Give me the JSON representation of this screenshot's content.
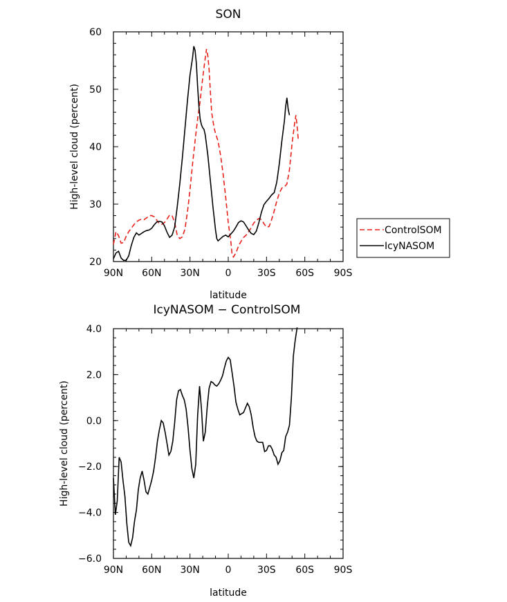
{
  "chart_data": [
    {
      "type": "line",
      "title": "SON",
      "xlabel": "latitude",
      "ylabel": "High-level cloud (percent)",
      "xlim": [
        90,
        -90
      ],
      "ylim": [
        20,
        60
      ],
      "x_ticks": [
        90,
        60,
        30,
        0,
        -30,
        -60,
        -90
      ],
      "x_tick_labels": [
        "90N",
        "60N",
        "30N",
        "0",
        "30S",
        "60S",
        "90S"
      ],
      "y_ticks": [
        20,
        30,
        40,
        50,
        60
      ],
      "y_tick_labels": [
        "20",
        "30",
        "40",
        "50",
        "60"
      ],
      "legend": "right",
      "series": [
        {
          "name": "ControlSOM",
          "color": "#e8201a",
          "dash": "dashed",
          "points": [
            [
              90,
              23.0
            ],
            [
              88,
              25.2
            ],
            [
              86,
              24.5
            ],
            [
              84,
              23.2
            ],
            [
              82,
              23.3
            ],
            [
              80,
              24.4
            ],
            [
              78,
              25.2
            ],
            [
              76,
              25.8
            ],
            [
              74,
              26.4
            ],
            [
              72,
              26.9
            ],
            [
              70,
              27.2
            ],
            [
              68,
              27.4
            ],
            [
              66,
              27.3
            ],
            [
              64,
              27.6
            ],
            [
              62,
              28.0
            ],
            [
              60,
              28.0
            ],
            [
              58,
              27.8
            ],
            [
              56,
              27.2
            ],
            [
              54,
              26.6
            ],
            [
              52,
              26.5
            ],
            [
              50,
              26.8
            ],
            [
              48,
              27.4
            ],
            [
              46,
              28.1
            ],
            [
              44,
              28.0
            ],
            [
              42,
              26.8
            ],
            [
              40,
              24.6
            ],
            [
              38,
              24.0
            ],
            [
              36,
              24.3
            ],
            [
              34,
              25.6
            ],
            [
              32,
              28.6
            ],
            [
              30,
              32.5
            ],
            [
              28,
              37.0
            ],
            [
              26,
              41.0
            ],
            [
              24,
              44.8
            ],
            [
              22,
              48.0
            ],
            [
              20,
              52.0
            ],
            [
              18,
              55.5
            ],
            [
              17,
              57.0
            ],
            [
              16,
              55.8
            ],
            [
              15,
              53.5
            ],
            [
              14,
              49.5
            ],
            [
              13,
              46.0
            ],
            [
              12,
              44.5
            ],
            [
              11,
              43.2
            ],
            [
              10,
              42.3
            ],
            [
              8,
              41.0
            ],
            [
              6,
              38.5
            ],
            [
              4,
              35.2
            ],
            [
              2,
              31.2
            ],
            [
              0,
              26.8
            ],
            [
              -2,
              23.5
            ],
            [
              -3,
              21.3
            ],
            [
              -4,
              20.8
            ],
            [
              -6,
              21.5
            ],
            [
              -8,
              22.7
            ],
            [
              -10,
              23.5
            ],
            [
              -12,
              24.2
            ],
            [
              -14,
              24.6
            ],
            [
              -16,
              25.2
            ],
            [
              -18,
              25.9
            ],
            [
              -20,
              26.7
            ],
            [
              -22,
              27.2
            ],
            [
              -24,
              27.5
            ],
            [
              -26,
              27.3
            ],
            [
              -28,
              26.6
            ],
            [
              -30,
              26.0
            ],
            [
              -32,
              26.1
            ],
            [
              -34,
              27.3
            ],
            [
              -36,
              28.8
            ],
            [
              -38,
              30.5
            ],
            [
              -40,
              31.9
            ],
            [
              -42,
              32.8
            ],
            [
              -44,
              33.0
            ],
            [
              -46,
              33.5
            ],
            [
              -48,
              36.0
            ],
            [
              -50,
              40.5
            ],
            [
              -52,
              44.0
            ],
            [
              -53,
              45.5
            ],
            [
              -54,
              43.5
            ],
            [
              -55,
              41.0
            ]
          ]
        },
        {
          "name": "IcyNASOM",
          "color": "#000000",
          "dash": "solid",
          "points": [
            [
              90,
              20.5
            ],
            [
              88,
              21.5
            ],
            [
              86,
              21.8
            ],
            [
              84,
              20.6
            ],
            [
              82,
              20.2
            ],
            [
              80,
              20.2
            ],
            [
              78,
              21.0
            ],
            [
              76,
              22.8
            ],
            [
              74,
              24.2
            ],
            [
              72,
              25.0
            ],
            [
              70,
              24.6
            ],
            [
              68,
              24.9
            ],
            [
              66,
              25.2
            ],
            [
              64,
              25.4
            ],
            [
              62,
              25.5
            ],
            [
              60,
              25.8
            ],
            [
              58,
              26.4
            ],
            [
              56,
              26.9
            ],
            [
              54,
              27.0
            ],
            [
              52,
              26.9
            ],
            [
              50,
              26.2
            ],
            [
              48,
              25.1
            ],
            [
              46,
              24.2
            ],
            [
              44,
              24.6
            ],
            [
              42,
              26.0
            ],
            [
              40,
              29.5
            ],
            [
              38,
              33.5
            ],
            [
              36,
              38.0
            ],
            [
              34,
              43.0
            ],
            [
              32,
              48.0
            ],
            [
              30,
              52.5
            ],
            [
              28,
              55.5
            ],
            [
              27,
              57.5
            ],
            [
              26,
              56.8
            ],
            [
              25,
              54.5
            ],
            [
              24,
              50.5
            ],
            [
              23,
              47.0
            ],
            [
              22,
              44.8
            ],
            [
              21,
              43.8
            ],
            [
              20,
              43.3
            ],
            [
              19,
              43.0
            ],
            [
              18,
              42.0
            ],
            [
              16,
              38.5
            ],
            [
              14,
              34.0
            ],
            [
              12,
              29.5
            ],
            [
              10,
              25.5
            ],
            [
              9,
              24.0
            ],
            [
              8,
              23.6
            ],
            [
              6,
              24.0
            ],
            [
              4,
              24.4
            ],
            [
              2,
              24.6
            ],
            [
              0,
              24.3
            ],
            [
              -2,
              24.8
            ],
            [
              -4,
              25.3
            ],
            [
              -6,
              26.0
            ],
            [
              -8,
              26.8
            ],
            [
              -10,
              27.1
            ],
            [
              -12,
              26.9
            ],
            [
              -14,
              26.2
            ],
            [
              -16,
              25.5
            ],
            [
              -18,
              24.9
            ],
            [
              -20,
              24.7
            ],
            [
              -22,
              25.3
            ],
            [
              -24,
              26.8
            ],
            [
              -26,
              28.6
            ],
            [
              -28,
              29.9
            ],
            [
              -30,
              30.5
            ],
            [
              -32,
              31.0
            ],
            [
              -34,
              31.6
            ],
            [
              -36,
              32.0
            ],
            [
              -38,
              33.8
            ],
            [
              -40,
              37.0
            ],
            [
              -42,
              41.0
            ],
            [
              -44,
              44.5
            ],
            [
              -45,
              47.0
            ],
            [
              -46,
              48.5
            ],
            [
              -47,
              46.5
            ],
            [
              -48,
              45.5
            ]
          ]
        }
      ]
    },
    {
      "type": "line",
      "title": "IcyNASOM − ControlSOM",
      "xlabel": "latitude",
      "ylabel": "High-level cloud (percent)",
      "xlim": [
        90,
        -90
      ],
      "ylim": [
        -6,
        4
      ],
      "x_ticks": [
        90,
        60,
        30,
        0,
        -30,
        -60,
        -90
      ],
      "x_tick_labels": [
        "90N",
        "60N",
        "30N",
        "0",
        "30S",
        "60S",
        "90S"
      ],
      "y_ticks": [
        -6,
        -4,
        -2,
        0,
        2,
        4
      ],
      "y_tick_labels": [
        "−6.0",
        "−4.0",
        "−2.0",
        "0.0",
        "2.0",
        "4.0"
      ],
      "series": [
        {
          "color": "#000000",
          "dash": "solid",
          "points": [
            [
              90,
              -2.5
            ],
            [
              88.5,
              -4.1
            ],
            [
              87,
              -3.5
            ],
            [
              85.5,
              -1.6
            ],
            [
              84,
              -1.8
            ],
            [
              82.5,
              -2.6
            ],
            [
              81,
              -3.3
            ],
            [
              79.5,
              -4.5
            ],
            [
              78,
              -5.3
            ],
            [
              76.5,
              -5.45
            ],
            [
              75,
              -5.1
            ],
            [
              73.5,
              -4.4
            ],
            [
              72,
              -3.9
            ],
            [
              70.5,
              -3.0
            ],
            [
              69,
              -2.5
            ],
            [
              67.5,
              -2.2
            ],
            [
              66,
              -2.6
            ],
            [
              64.5,
              -3.1
            ],
            [
              63,
              -3.2
            ],
            [
              61.5,
              -2.9
            ],
            [
              60,
              -2.6
            ],
            [
              58.5,
              -2.2
            ],
            [
              57,
              -1.6
            ],
            [
              55.5,
              -0.9
            ],
            [
              54,
              -0.4
            ],
            [
              52.5,
              0.0
            ],
            [
              51,
              -0.1
            ],
            [
              49.5,
              -0.5
            ],
            [
              48,
              -1.0
            ],
            [
              46.5,
              -1.5
            ],
            [
              45,
              -1.35
            ],
            [
              43.5,
              -0.9
            ],
            [
              42,
              -0.1
            ],
            [
              40.5,
              0.9
            ],
            [
              39,
              1.3
            ],
            [
              37.5,
              1.35
            ],
            [
              36,
              1.1
            ],
            [
              34.5,
              0.9
            ],
            [
              33,
              0.5
            ],
            [
              31.5,
              -0.3
            ],
            [
              30,
              -1.3
            ],
            [
              28.5,
              -2.1
            ],
            [
              27,
              -2.5
            ],
            [
              25.5,
              -1.9
            ],
            [
              24,
              0.2
            ],
            [
              22.5,
              1.5
            ],
            [
              21,
              0.5
            ],
            [
              19.5,
              -0.9
            ],
            [
              18,
              -0.5
            ],
            [
              16.5,
              0.6
            ],
            [
              15,
              1.4
            ],
            [
              13.5,
              1.7
            ],
            [
              12,
              1.65
            ],
            [
              10.5,
              1.55
            ],
            [
              9,
              1.5
            ],
            [
              7.5,
              1.6
            ],
            [
              6,
              1.75
            ],
            [
              4.5,
              1.95
            ],
            [
              3,
              2.3
            ],
            [
              1.5,
              2.6
            ],
            [
              0,
              2.75
            ],
            [
              -1.5,
              2.65
            ],
            [
              -3,
              2.1
            ],
            [
              -4.5,
              1.5
            ],
            [
              -6,
              0.8
            ],
            [
              -7.5,
              0.5
            ],
            [
              -9,
              0.25
            ],
            [
              -10.5,
              0.3
            ],
            [
              -12,
              0.35
            ],
            [
              -13.5,
              0.55
            ],
            [
              -15,
              0.75
            ],
            [
              -16.5,
              0.6
            ],
            [
              -18,
              0.25
            ],
            [
              -19.5,
              -0.3
            ],
            [
              -21,
              -0.7
            ],
            [
              -22.5,
              -0.9
            ],
            [
              -24,
              -0.95
            ],
            [
              -25.5,
              -0.95
            ],
            [
              -27,
              -0.95
            ],
            [
              -28.5,
              -1.35
            ],
            [
              -30,
              -1.3
            ],
            [
              -31.5,
              -1.1
            ],
            [
              -33,
              -1.1
            ],
            [
              -34.5,
              -1.25
            ],
            [
              -36,
              -1.5
            ],
            [
              -37.5,
              -1.6
            ],
            [
              -39,
              -1.9
            ],
            [
              -40.5,
              -1.75
            ],
            [
              -42,
              -1.4
            ],
            [
              -43.5,
              -1.3
            ],
            [
              -45,
              -0.7
            ],
            [
              -46.5,
              -0.5
            ],
            [
              -48,
              -0.2
            ],
            [
              -49.5,
              1.0
            ],
            [
              -51,
              2.8
            ],
            [
              -52.5,
              3.5
            ],
            [
              -54,
              4.05
            ]
          ]
        }
      ]
    }
  ]
}
